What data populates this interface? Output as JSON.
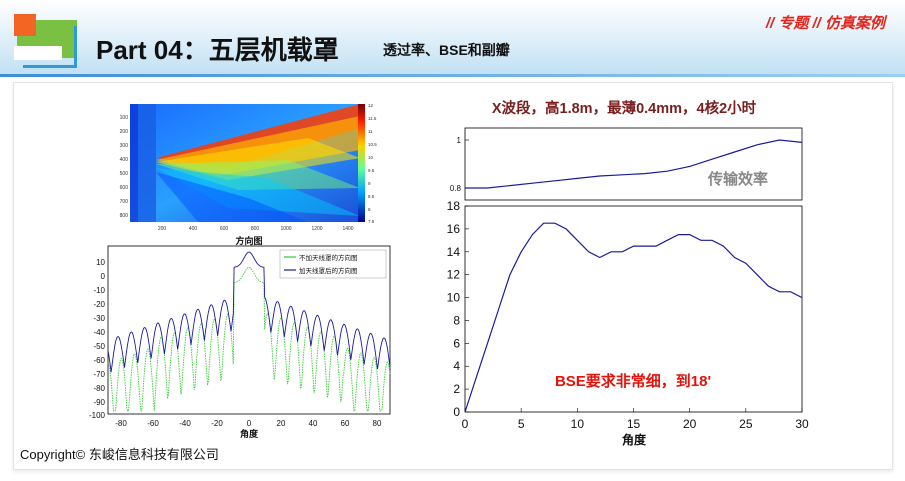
{
  "header": {
    "title": "Part 04：五层机载罩",
    "subtitle": "透过率、BSE和副瓣",
    "tag": "// 专题 // 仿真案例"
  },
  "footer": {
    "copyright": "Copyright© 东峻信息科技有限公司"
  },
  "heatmap": {
    "x_ticks": [
      "200",
      "400",
      "600",
      "800",
      "1000",
      "1200",
      "1400"
    ],
    "y_ticks": [
      "100",
      "200",
      "300",
      "400",
      "500",
      "600",
      "700",
      "800"
    ],
    "colorbar_ticks": [
      "12",
      "11.5",
      "11",
      "10.5",
      "10",
      "9.5",
      "9",
      "8.5",
      "8",
      "7.5"
    ]
  },
  "pattern_chart": {
    "title": "方向图",
    "xlabel": "角度",
    "legend": [
      "不加天线罩的方向图",
      "加天线罩后的方向图"
    ],
    "colors": {
      "without": "#33cc33",
      "with": "#1a1a9e"
    },
    "x_ticks": [
      "-80",
      "-60",
      "-40",
      "-20",
      "0",
      "20",
      "40",
      "60",
      "80"
    ],
    "y_ticks": [
      "10",
      "0",
      "-10",
      "-20",
      "-30",
      "-40",
      "-50",
      "-60",
      "-70",
      "-80",
      "-90",
      "-100"
    ]
  },
  "right_panel": {
    "title": "X波段，高1.8m，最薄0.4mm，4核2小时",
    "transmission_label": "传输效率",
    "bse_label": "BSE要求非常细，到18'",
    "xlabel": "角度"
  },
  "chart_data": [
    {
      "type": "line",
      "title": "",
      "xlabel": "",
      "ylabel": "",
      "ylim": [
        0.75,
        1.05
      ],
      "xlim": [
        0,
        30
      ],
      "y_ticks": [
        "1",
        "0.8"
      ],
      "series": [
        {
          "name": "传输效率",
          "x": [
            0,
            2,
            4,
            6,
            8,
            10,
            12,
            14,
            16,
            18,
            20,
            22,
            24,
            26,
            28,
            30
          ],
          "values": [
            0.8,
            0.8,
            0.81,
            0.82,
            0.83,
            0.84,
            0.85,
            0.855,
            0.86,
            0.87,
            0.89,
            0.92,
            0.95,
            0.98,
            1.0,
            0.99
          ]
        }
      ]
    },
    {
      "type": "line",
      "title": "",
      "xlabel": "角度",
      "ylabel": "",
      "ylim": [
        0,
        18
      ],
      "xlim": [
        0,
        30
      ],
      "x_ticks": [
        "0",
        "5",
        "10",
        "15",
        "20",
        "25",
        "30"
      ],
      "y_ticks": [
        "0",
        "2",
        "4",
        "6",
        "8",
        "10",
        "12",
        "14",
        "16",
        "18"
      ],
      "series": [
        {
          "name": "BSE",
          "x": [
            0,
            1,
            2,
            3,
            4,
            5,
            6,
            7,
            8,
            9,
            10,
            11,
            12,
            13,
            14,
            15,
            16,
            17,
            18,
            19,
            20,
            21,
            22,
            23,
            24,
            25,
            26,
            27,
            28,
            29,
            30
          ],
          "values": [
            0,
            3,
            6,
            9,
            12,
            14,
            15.5,
            16.5,
            16.5,
            16,
            15,
            14,
            13.5,
            14,
            14,
            14.5,
            14.5,
            14.5,
            15,
            15.5,
            15.5,
            15,
            15,
            14.5,
            13.5,
            13,
            12,
            11,
            10.5,
            10.5,
            10
          ]
        }
      ]
    }
  ]
}
